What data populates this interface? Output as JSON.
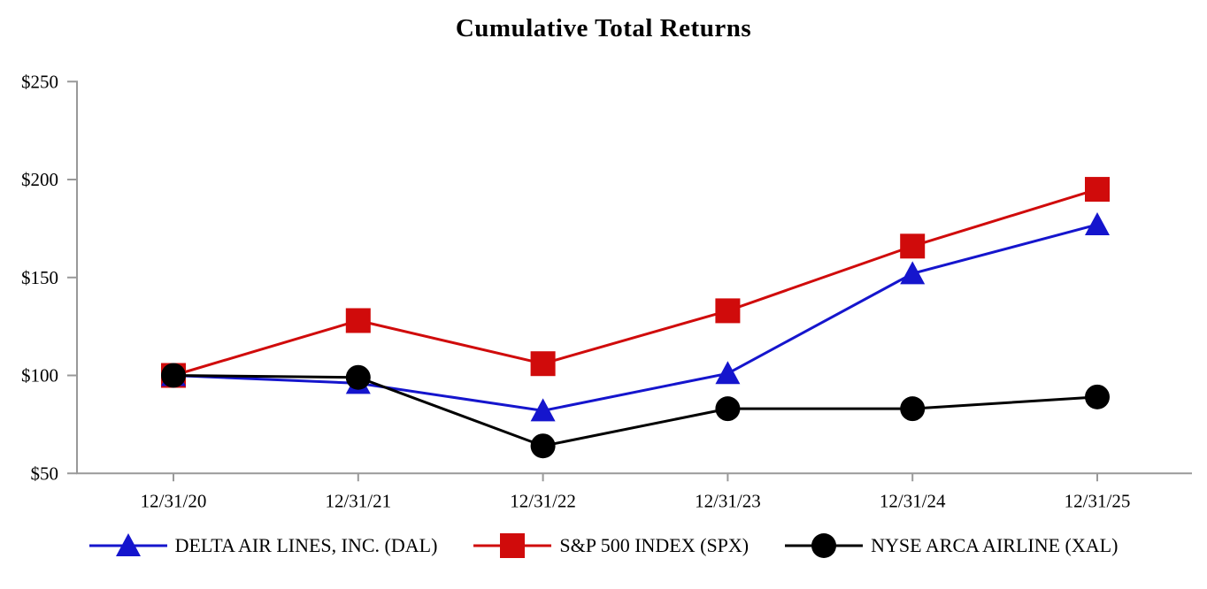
{
  "title": "Cumulative Total Returns",
  "chart_data": {
    "type": "line",
    "title": "Cumulative Total Returns",
    "categories": [
      "12/31/20",
      "12/31/21",
      "12/31/22",
      "12/31/23",
      "12/31/24",
      "12/31/25"
    ],
    "series": [
      {
        "name": "DELTA AIR LINES, INC. (DAL)",
        "marker": "triangle",
        "color": "#1515CD",
        "values": [
          100,
          96,
          82,
          101,
          152,
          177
        ]
      },
      {
        "name": "S&P 500 INDEX (SPX)",
        "marker": "square",
        "color": "#D00B0B",
        "values": [
          100,
          128,
          106,
          133,
          166,
          195
        ]
      },
      {
        "name": "NYSE ARCA AIRLINE (XAL)",
        "marker": "circle",
        "color": "#000000",
        "values": [
          100,
          99,
          64,
          83,
          83,
          89
        ]
      }
    ],
    "ytick_labels": [
      "$250",
      "$200",
      "$150",
      "$100",
      "$50"
    ],
    "ytick_values": [
      250,
      200,
      150,
      100,
      50
    ],
    "ylim": [
      50,
      250
    ],
    "grid": false,
    "legend_position": "bottom",
    "axis_color": "#999999",
    "text_color": "#000000"
  }
}
